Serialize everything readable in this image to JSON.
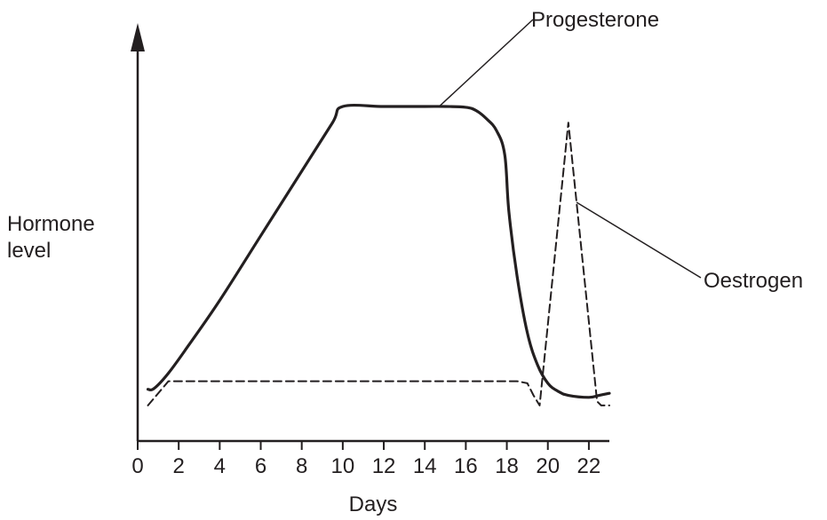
{
  "chart_data": {
    "type": "line",
    "title": "",
    "xlabel": "Days",
    "ylabel": "Hormone level",
    "ylabel_lines": [
      "Hormone",
      "level"
    ],
    "xlim": [
      0,
      23
    ],
    "ylim": [
      0,
      100
    ],
    "x_ticks": [
      0,
      2,
      4,
      6,
      8,
      10,
      12,
      14,
      16,
      18,
      20,
      22
    ],
    "y_ticks_shown": false,
    "grid": false,
    "legend": "none (series labelled directly with leader lines)",
    "series": [
      {
        "name": "Progesterone",
        "style": "solid",
        "color": "#231f20",
        "x": [
          0.5,
          0.8,
          1.5,
          2.5,
          4,
          6,
          8,
          9.5,
          10,
          12,
          14,
          15,
          16,
          16.5,
          17,
          17.5,
          17.9,
          18.1,
          18.5,
          19,
          19.5,
          20,
          20.5,
          21,
          22,
          22.5,
          23
        ],
        "y": [
          6,
          6.2,
          10,
          17,
          28,
          44,
          60,
          72,
          76,
          76,
          76,
          76,
          75.8,
          75,
          73,
          70,
          64,
          50,
          34,
          20,
          12,
          7.5,
          5.5,
          4.5,
          4,
          4.5,
          5
        ]
      },
      {
        "name": "Oestrogen",
        "style": "dashed",
        "color": "#231f20",
        "x": [
          0.5,
          1.0,
          1.5,
          10,
          18.5,
          19.0,
          19.3,
          19.6,
          21,
          22.4,
          22.6,
          23
        ],
        "y": [
          2,
          5,
          8,
          8,
          8,
          7.5,
          4.5,
          2,
          72,
          3,
          2,
          2
        ]
      }
    ],
    "annotations": [
      {
        "text": "Progesterone",
        "points_to": "Progesterone",
        "at_x": 14.7
      },
      {
        "text": "Oestrogen",
        "points_to": "Oestrogen",
        "at_x": 21.4
      }
    ]
  }
}
